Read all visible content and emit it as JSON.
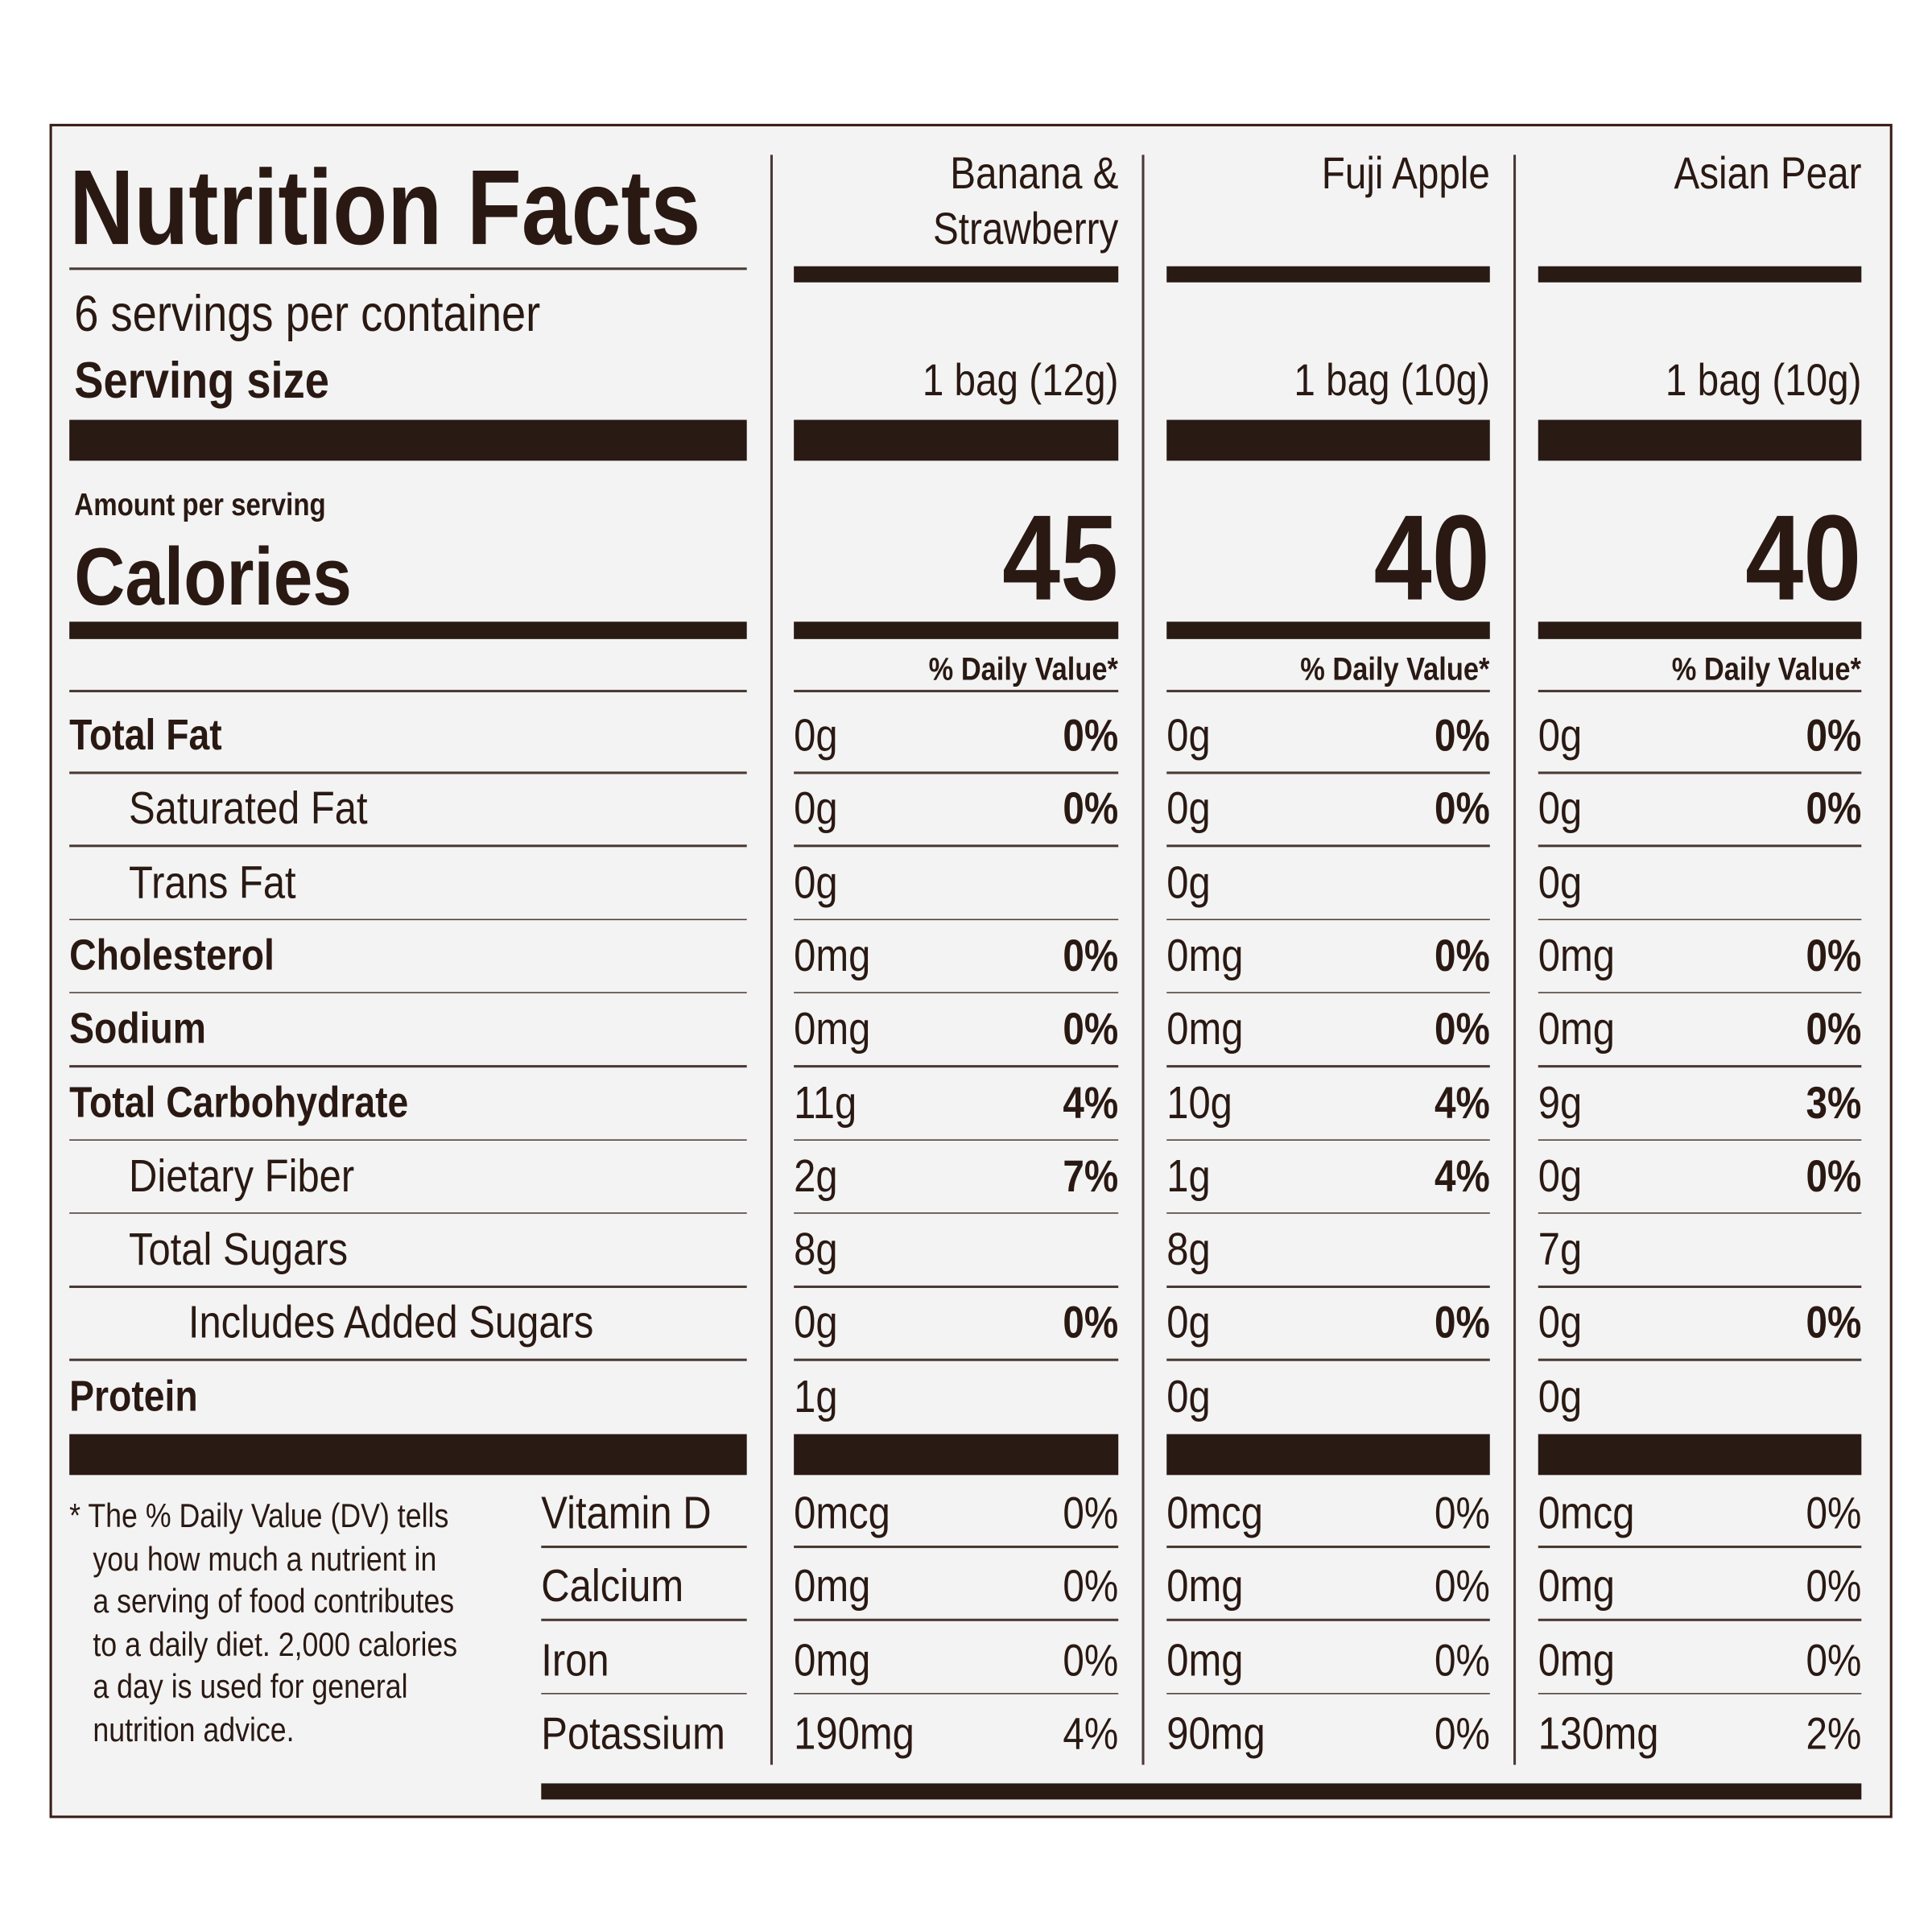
{
  "title": "Nutrition Facts",
  "servings_per_container": "6 servings per container",
  "serving_size_label": "Serving size",
  "amount_per_serving": "Amount per serving",
  "calories_label": "Calories",
  "daily_value_header": "% Daily Value*",
  "products": [
    {
      "name_line1": "Banana &",
      "name_line2": "Strawberry",
      "serving_size": "1 bag (12g)",
      "calories": "45"
    },
    {
      "name_line1": "Fuji Apple",
      "name_line2": "",
      "serving_size": "1 bag (10g)",
      "calories": "40"
    },
    {
      "name_line1": "Asian Pear",
      "name_line2": "",
      "serving_size": "1 bag (10g)",
      "calories": "40"
    }
  ],
  "nutrients": [
    {
      "label": "Total Fat",
      "bold": true,
      "indent": 0,
      "values": [
        [
          "0g",
          "0%"
        ],
        [
          "0g",
          "0%"
        ],
        [
          "0g",
          "0%"
        ]
      ]
    },
    {
      "label": "Saturated Fat",
      "bold": false,
      "indent": 1,
      "values": [
        [
          "0g",
          "0%"
        ],
        [
          "0g",
          "0%"
        ],
        [
          "0g",
          "0%"
        ]
      ]
    },
    {
      "label": "Trans Fat",
      "bold": false,
      "indent": 1,
      "values": [
        [
          "0g",
          ""
        ],
        [
          "0g",
          ""
        ],
        [
          "0g",
          ""
        ]
      ]
    },
    {
      "label": "Cholesterol",
      "bold": true,
      "indent": 0,
      "values": [
        [
          "0mg",
          "0%"
        ],
        [
          "0mg",
          "0%"
        ],
        [
          "0mg",
          "0%"
        ]
      ]
    },
    {
      "label": "Sodium",
      "bold": true,
      "indent": 0,
      "values": [
        [
          "0mg",
          "0%"
        ],
        [
          "0mg",
          "0%"
        ],
        [
          "0mg",
          "0%"
        ]
      ]
    },
    {
      "label": "Total Carbohydrate",
      "bold": true,
      "indent": 0,
      "values": [
        [
          "11g",
          "4%"
        ],
        [
          "10g",
          "4%"
        ],
        [
          "9g",
          "3%"
        ]
      ]
    },
    {
      "label": "Dietary Fiber",
      "bold": false,
      "indent": 1,
      "values": [
        [
          "2g",
          "7%"
        ],
        [
          "1g",
          "4%"
        ],
        [
          "0g",
          "0%"
        ]
      ]
    },
    {
      "label": "Total Sugars",
      "bold": false,
      "indent": 1,
      "values": [
        [
          "8g",
          ""
        ],
        [
          "8g",
          ""
        ],
        [
          "7g",
          ""
        ]
      ]
    },
    {
      "label": "Includes Added Sugars",
      "bold": false,
      "indent": 2,
      "values": [
        [
          "0g",
          "0%"
        ],
        [
          "0g",
          "0%"
        ],
        [
          "0g",
          "0%"
        ]
      ]
    },
    {
      "label": "Protein",
      "bold": true,
      "indent": 0,
      "values": [
        [
          "1g",
          ""
        ],
        [
          "0g",
          ""
        ],
        [
          "0g",
          ""
        ]
      ]
    }
  ],
  "vitamins": [
    {
      "label": "Vitamin D",
      "values": [
        [
          "0mcg",
          "0%"
        ],
        [
          "0mcg",
          "0%"
        ],
        [
          "0mcg",
          "0%"
        ]
      ]
    },
    {
      "label": "Calcium",
      "values": [
        [
          "0mg",
          "0%"
        ],
        [
          "0mg",
          "0%"
        ],
        [
          "0mg",
          "0%"
        ]
      ]
    },
    {
      "label": "Iron",
      "values": [
        [
          "0mg",
          "0%"
        ],
        [
          "0mg",
          "0%"
        ],
        [
          "0mg",
          "0%"
        ]
      ]
    },
    {
      "label": "Potassium",
      "values": [
        [
          "190mg",
          "4%"
        ],
        [
          "90mg",
          "0%"
        ],
        [
          "130mg",
          "2%"
        ]
      ]
    }
  ],
  "footnote_lines": [
    "* The % Daily Value (DV) tells",
    "you how much a nutrient in",
    "a serving of food contributes",
    "to a daily diet. 2,000 calories",
    "a day is used for general",
    "nutrition advice."
  ],
  "colors": {
    "text": "#2a1913",
    "bars": "#2a1a14",
    "background": "#f3f3f3",
    "border": "#3a1c16"
  }
}
